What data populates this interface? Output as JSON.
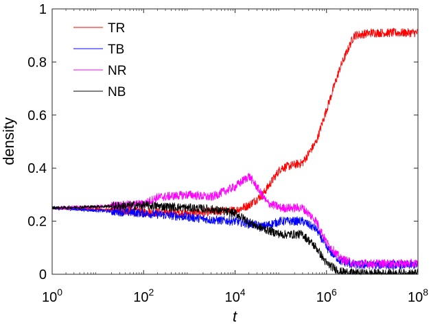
{
  "chart_data": {
    "type": "line",
    "xlabel": "t",
    "ylabel": "density",
    "xscale": "log",
    "xlim": [
      1,
      100000000
    ],
    "ylim": [
      0,
      1
    ],
    "grid": false,
    "legend_position": "top-left",
    "x_ticks": [
      {
        "value": 1,
        "base": "10",
        "exp": "0"
      },
      {
        "value": 100,
        "base": "10",
        "exp": "2"
      },
      {
        "value": 10000,
        "base": "10",
        "exp": "4"
      },
      {
        "value": 1000000,
        "base": "10",
        "exp": "6"
      },
      {
        "value": 100000000,
        "base": "10",
        "exp": "8"
      }
    ],
    "y_ticks": [
      {
        "value": 0,
        "label": "0"
      },
      {
        "value": 0.2,
        "label": "0.2"
      },
      {
        "value": 0.4,
        "label": "0.4"
      },
      {
        "value": 0.6,
        "label": "0.6"
      },
      {
        "value": 0.8,
        "label": "0.8"
      },
      {
        "value": 1,
        "label": "1"
      }
    ],
    "series": [
      {
        "name": "TR",
        "color": "#ff0000",
        "x": [
          1,
          10,
          100,
          1000,
          3000,
          10000,
          20000,
          40000,
          100000,
          300000,
          600000,
          1000000,
          2000000,
          4000000,
          10000000,
          100000000
        ],
        "y": [
          0.25,
          0.245,
          0.235,
          0.23,
          0.235,
          0.24,
          0.26,
          0.3,
          0.4,
          0.42,
          0.5,
          0.62,
          0.78,
          0.9,
          0.91,
          0.91
        ]
      },
      {
        "name": "TB",
        "color": "#0000ff",
        "x": [
          1,
          10,
          100,
          1000,
          3000,
          10000,
          40000,
          100000,
          300000,
          600000,
          1000000,
          2000000,
          4000000,
          10000000,
          100000000
        ],
        "y": [
          0.25,
          0.24,
          0.23,
          0.215,
          0.205,
          0.2,
          0.18,
          0.2,
          0.2,
          0.17,
          0.1,
          0.05,
          0.035,
          0.035,
          0.035
        ]
      },
      {
        "name": "NR",
        "color": "#ff00ff",
        "x": [
          1,
          10,
          100,
          200,
          1000,
          3000,
          10000,
          20000,
          30000,
          50000,
          100000,
          300000,
          600000,
          1000000,
          2000000,
          4000000,
          10000000,
          100000000
        ],
        "y": [
          0.25,
          0.255,
          0.265,
          0.29,
          0.3,
          0.29,
          0.33,
          0.37,
          0.33,
          0.27,
          0.25,
          0.25,
          0.2,
          0.12,
          0.06,
          0.04,
          0.04,
          0.04
        ]
      },
      {
        "name": "NB",
        "color": "#000000",
        "x": [
          1,
          10,
          100,
          1000,
          3000,
          10000,
          30000,
          100000,
          300000,
          600000,
          1000000,
          2000000,
          4000000,
          10000000,
          100000000
        ],
        "y": [
          0.25,
          0.255,
          0.26,
          0.25,
          0.245,
          0.23,
          0.18,
          0.15,
          0.15,
          0.1,
          0.04,
          0.01,
          0.004,
          0.003,
          0.003
        ]
      }
    ]
  }
}
